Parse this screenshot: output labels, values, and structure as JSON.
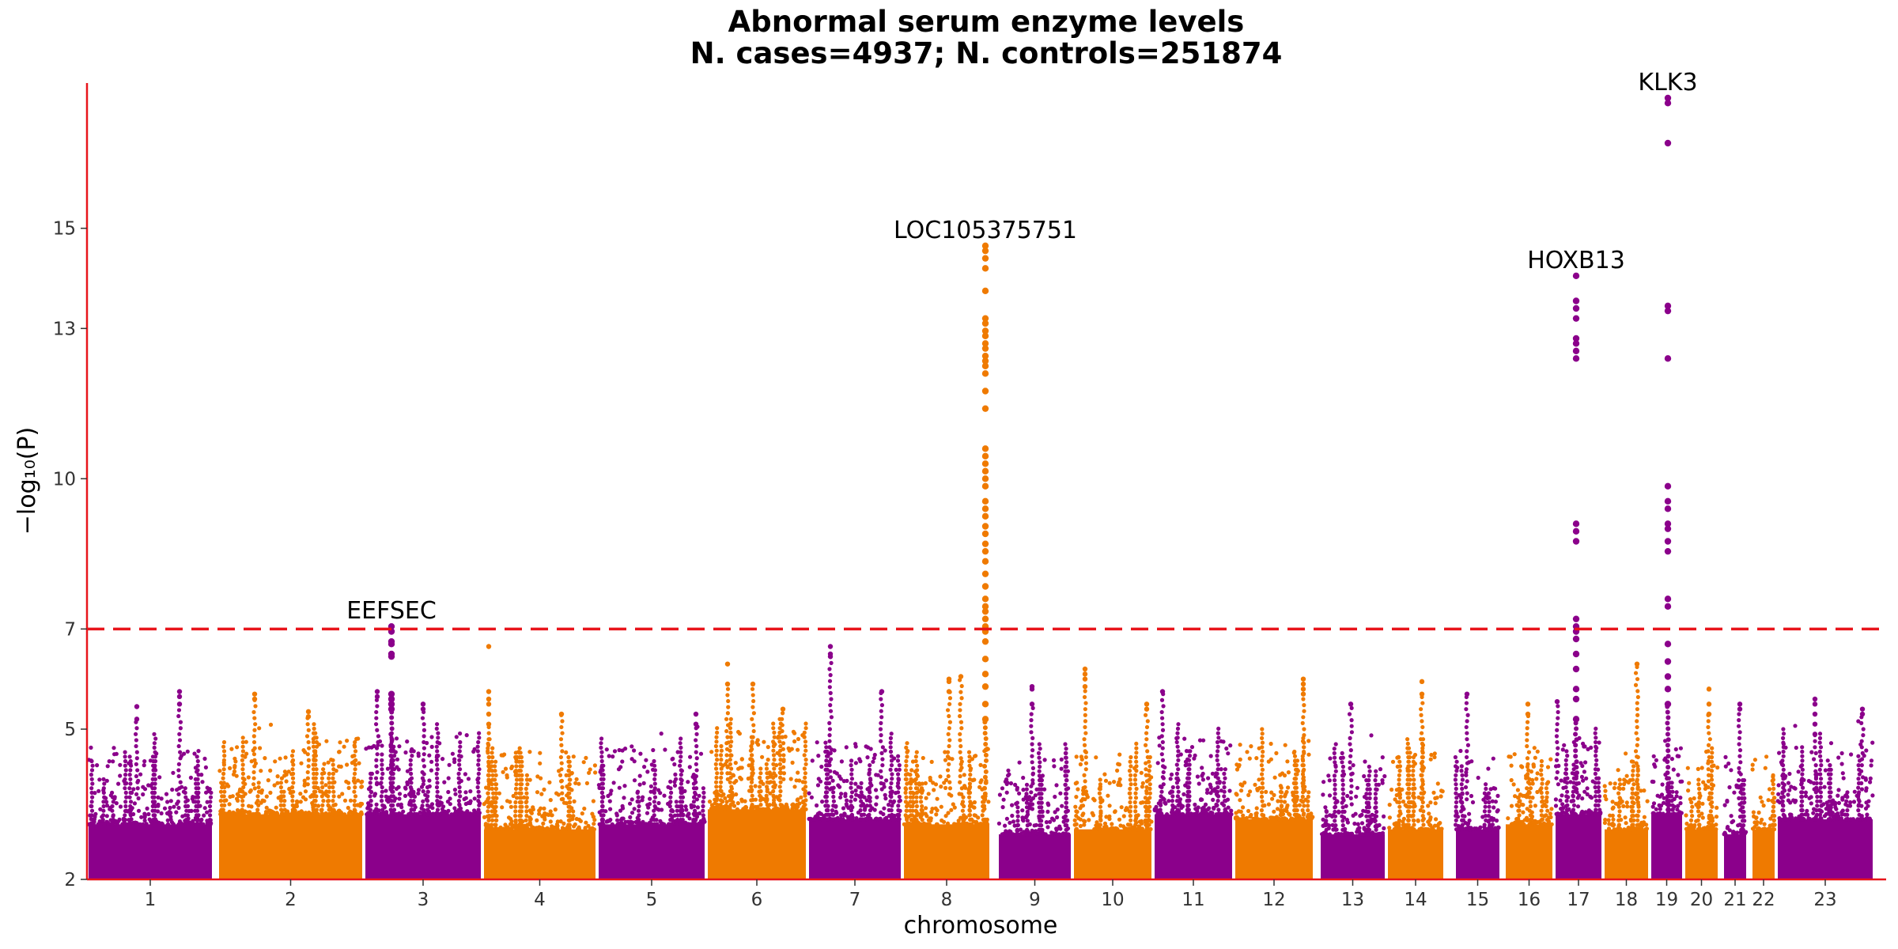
{
  "chart_data": {
    "type": "scatter",
    "title": "Abnormal serum enzyme levels",
    "subtitle": "N. cases=4937; N. controls=251874",
    "xlabel": "chromosome",
    "ylabel": "−log₁₀(P)",
    "ylim": [
      2,
      17.9
    ],
    "yticks": [
      2,
      5,
      7,
      10,
      13,
      15
    ],
    "significance_line": 7,
    "grid": false,
    "colors": {
      "odd": "#8b008b",
      "even": "#ef7a00",
      "axis": "#e8141b",
      "threshold": "#e8141b"
    },
    "chromosomes": [
      {
        "label": "1",
        "start": 0,
        "end": 160,
        "gapAfter": 5,
        "base": 3.1
      },
      {
        "label": "2",
        "start": 165,
        "end": 350,
        "gapAfter": 0,
        "base": 3.3
      },
      {
        "label": "3",
        "start": 350,
        "end": 500,
        "gapAfter": 0,
        "base": 3.3
      },
      {
        "label": "4",
        "start": 500,
        "end": 645,
        "gapAfter": 0,
        "base": 3.0
      },
      {
        "label": "5",
        "start": 645,
        "end": 783,
        "gapAfter": 0,
        "base": 3.1
      },
      {
        "label": "6",
        "start": 783,
        "end": 911,
        "gapAfter": 0,
        "base": 3.4
      },
      {
        "label": "7",
        "start": 911,
        "end": 1031,
        "gapAfter": 0,
        "base": 3.2
      },
      {
        "label": "8",
        "start": 1031,
        "end": 1143,
        "gapAfter": 8,
        "base": 3.1
      },
      {
        "label": "9",
        "start": 1151,
        "end": 1246,
        "gapAfter": 0,
        "base": 2.9
      },
      {
        "label": "10",
        "start": 1246,
        "end": 1348,
        "gapAfter": 0,
        "base": 3.0
      },
      {
        "label": "11",
        "start": 1348,
        "end": 1450,
        "gapAfter": 0,
        "base": 3.3
      },
      {
        "label": "12",
        "start": 1450,
        "end": 1552,
        "gapAfter": 6,
        "base": 3.2
      },
      {
        "label": "13",
        "start": 1558,
        "end": 1643,
        "gapAfter": 0,
        "base": 2.9
      },
      {
        "label": "14",
        "start": 1643,
        "end": 1717,
        "gapAfter": 12,
        "base": 3.0
      },
      {
        "label": "15",
        "start": 1729,
        "end": 1788,
        "gapAfter": 4,
        "base": 3.0
      },
      {
        "label": "16",
        "start": 1792,
        "end": 1855,
        "gapAfter": 0,
        "base": 3.1
      },
      {
        "label": "17",
        "start": 1855,
        "end": 1917,
        "gapAfter": 0,
        "base": 3.3
      },
      {
        "label": "18",
        "start": 1917,
        "end": 1976,
        "gapAfter": 0,
        "base": 3.0
      },
      {
        "label": "19",
        "start": 1976,
        "end": 2019,
        "gapAfter": 0,
        "base": 3.3
      },
      {
        "label": "20",
        "start": 2019,
        "end": 2064,
        "gapAfter": 4,
        "base": 3.0
      },
      {
        "label": "21",
        "start": 2068,
        "end": 2100,
        "gapAfter": 4,
        "base": 2.9
      },
      {
        "label": "22",
        "start": 2104,
        "end": 2136,
        "gapAfter": 0,
        "base": 3.0
      },
      {
        "label": "23",
        "start": 2136,
        "end": 2260,
        "gapAfter": 0,
        "base": 3.2
      }
    ],
    "peaks": [
      {
        "gene": "EEFSEC",
        "chr": "3",
        "pos": 385,
        "values": [
          7.05,
          6.95,
          6.75,
          6.7,
          6.5,
          6.45,
          5.7,
          5.6,
          5.5,
          5.4
        ]
      },
      {
        "gene": "LOC105375751",
        "chr": "8",
        "pos": 1136,
        "values": [
          14.65,
          14.55,
          14.4,
          14.2,
          13.75,
          13.2,
          13.1,
          12.95,
          12.85,
          12.7,
          12.6,
          12.45,
          12.35,
          12.25,
          12.1,
          11.75,
          11.4,
          10.6,
          10.45,
          10.3,
          10.15,
          10.0,
          9.85,
          9.55,
          9.4,
          9.25,
          9.05,
          8.9,
          8.7,
          8.55,
          8.35,
          8.1,
          7.85,
          7.6,
          7.45,
          7.35,
          7.2,
          7.05,
          6.95,
          6.75,
          6.4,
          6.1,
          5.85,
          5.5,
          5.2
        ]
      },
      {
        "gene": "HOXB13",
        "chr": "17",
        "pos": 1883,
        "values": [
          14.05,
          13.55,
          13.4,
          13.2,
          12.8,
          12.7,
          12.55,
          12.4,
          9.1,
          8.95,
          8.75,
          7.2,
          7.05,
          6.95,
          6.8,
          6.5,
          6.2,
          5.8,
          5.6,
          5.2
        ]
      },
      {
        "gene": "KLK3",
        "chr": "19",
        "pos": 1999,
        "values": [
          17.6,
          17.5,
          16.7,
          13.45,
          13.35,
          12.4,
          9.85,
          9.55,
          9.4,
          9.1,
          9.0,
          8.75,
          8.55,
          7.6,
          7.45,
          6.7,
          6.35,
          6.05,
          5.8,
          5.5
        ]
      }
    ],
    "minor_peaks": [
      {
        "chr": "1",
        "pos": 63,
        "values": [
          5.45,
          5.2
        ]
      },
      {
        "chr": "1",
        "pos": 117,
        "values": [
          5.75,
          5.65,
          5.5
        ]
      },
      {
        "chr": "2",
        "pos": 212,
        "values": [
          5.7,
          5.6
        ]
      },
      {
        "chr": "2",
        "pos": 280,
        "values": [
          5.35,
          5.25
        ]
      },
      {
        "chr": "3",
        "pos": 367,
        "values": [
          5.75,
          5.65
        ]
      },
      {
        "chr": "3",
        "pos": 425,
        "values": [
          5.5,
          5.4
        ]
      },
      {
        "chr": "4",
        "pos": 508,
        "values": [
          6.65,
          5.75,
          5.6,
          5.5,
          5.3,
          5.1
        ]
      },
      {
        "chr": "4",
        "pos": 600,
        "values": [
          5.3
        ]
      },
      {
        "chr": "5",
        "pos": 770,
        "values": [
          5.3,
          5.1
        ]
      },
      {
        "chr": "6",
        "pos": 810,
        "values": [
          6.3,
          5.9
        ]
      },
      {
        "chr": "6",
        "pos": 842,
        "values": [
          5.9
        ]
      },
      {
        "chr": "6",
        "pos": 880,
        "values": [
          5.4
        ]
      },
      {
        "chr": "7",
        "pos": 940,
        "values": [
          6.65,
          6.5,
          6.45
        ]
      },
      {
        "chr": "7",
        "pos": 1005,
        "values": [
          5.75
        ]
      },
      {
        "chr": "8",
        "pos": 1090,
        "values": [
          6.0,
          5.95,
          5.75
        ]
      },
      {
        "chr": "8",
        "pos": 1105,
        "values": [
          6.05
        ]
      },
      {
        "chr": "9",
        "pos": 1195,
        "values": [
          5.85,
          5.8,
          5.5
        ]
      },
      {
        "chr": "10",
        "pos": 1262,
        "values": [
          6.2,
          6.1,
          6.0,
          5.85
        ]
      },
      {
        "chr": "10",
        "pos": 1340,
        "values": [
          5.5,
          5.4
        ]
      },
      {
        "chr": "11",
        "pos": 1360,
        "values": [
          5.75
        ]
      },
      {
        "chr": "12",
        "pos": 1538,
        "values": [
          6.0,
          5.9,
          5.8,
          5.7
        ]
      },
      {
        "chr": "13",
        "pos": 1598,
        "values": [
          5.5
        ]
      },
      {
        "chr": "14",
        "pos": 1688,
        "values": [
          5.95,
          5.7
        ]
      },
      {
        "chr": "15",
        "pos": 1745,
        "values": [
          5.7
        ]
      },
      {
        "chr": "16",
        "pos": 1822,
        "values": [
          5.5,
          5.3
        ]
      },
      {
        "chr": "17",
        "pos": 1859,
        "values": [
          5.55
        ]
      },
      {
        "chr": "18",
        "pos": 1960,
        "values": [
          6.3
        ]
      },
      {
        "chr": "20",
        "pos": 2051,
        "values": [
          5.8,
          5.5,
          5.3
        ]
      },
      {
        "chr": "21",
        "pos": 2090,
        "values": [
          5.5,
          5.4
        ]
      },
      {
        "chr": "23",
        "pos": 2185,
        "values": [
          5.6,
          5.5,
          5.3,
          5.1,
          4.9
        ]
      },
      {
        "chr": "23",
        "pos": 2245,
        "values": [
          5.4,
          5.3
        ]
      }
    ]
  }
}
